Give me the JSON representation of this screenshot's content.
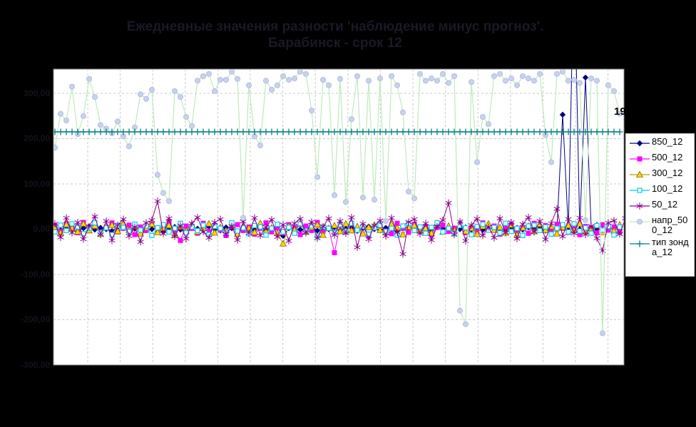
{
  "title": {
    "line1": "Ежедневные значения разности 'наблюдение минус прогноз'.",
    "line2": "Барабинск - срок 12"
  },
  "annotation": {
    "text": "19"
  },
  "colors": {
    "background": "#000000",
    "plot_background": "#FFFFFF",
    "plot_border": "#8C8C8C",
    "grid": "#C9C9C9",
    "title_text": "#191928",
    "axis_text": "#13131F",
    "legend_border": "#D9D9D9",
    "legend_background": "#FFFFFF"
  },
  "chart_data": {
    "type": "line",
    "title": "Ежедневные значения разности 'наблюдение минус прогноз'. Барабинск - срок 12",
    "xlabel": "",
    "ylabel": "",
    "ylim": [
      -300,
      353
    ],
    "grid": "dashed",
    "legend_position": "right",
    "x": {
      "count": 100,
      "labels_visible": false
    },
    "y_ticks": [
      {
        "value": 300,
        "label": "300,00"
      },
      {
        "value": 200,
        "label": "200,00"
      },
      {
        "value": 100,
        "label": "100,00"
      },
      {
        "value": 0,
        "label": "0,00"
      },
      {
        "value": -100,
        "label": "-100,00"
      },
      {
        "value": -200,
        "label": "-200,00"
      },
      {
        "value": -300,
        "label": "-300,00"
      }
    ],
    "series": [
      {
        "name": "850_12",
        "color": "#000080",
        "marker": "diamond",
        "width": 1,
        "values": [
          3,
          -2,
          4,
          1,
          -5,
          2,
          6,
          -1,
          3,
          0,
          -4,
          5,
          2,
          -3,
          1,
          4,
          -2,
          0,
          3,
          -6,
          2,
          5,
          -1,
          -4,
          3,
          1,
          -2,
          6,
          0,
          -3,
          4,
          2,
          -5,
          1,
          3,
          -1,
          5,
          -2,
          0,
          4,
          -15,
          2,
          3,
          -1,
          1,
          5,
          -3,
          2,
          0,
          4,
          -2,
          1,
          3,
          -4,
          2,
          6,
          0,
          -2,
          3,
          1,
          -5,
          2,
          4,
          -1,
          0,
          3,
          -2,
          5,
          1,
          -3,
          2,
          0,
          4,
          -1,
          3,
          -2,
          1,
          5,
          0,
          -4,
          2,
          3,
          -1,
          4,
          0,
          2,
          -3,
          1,
          0,
          253,
          -2,
          600,
          0,
          335,
          2,
          0,
          -1,
          3,
          1,
          -2
        ]
      },
      {
        "name": "500_12",
        "color": "#FF00FF",
        "marker": "square",
        "width": 1,
        "values": [
          8,
          -5,
          12,
          3,
          -8,
          15,
          -2,
          6,
          -10,
          4,
          14,
          -6,
          2,
          9,
          -12,
          5,
          -3,
          11,
          -7,
          3,
          16,
          -4,
          -25,
          7,
          2,
          -9,
          13,
          -5,
          8,
          -2,
          -14,
          6,
          10,
          -3,
          5,
          -11,
          2,
          14,
          -6,
          3,
          -8,
          10,
          4,
          -12,
          7,
          -3,
          15,
          -5,
          2,
          -52,
          9,
          -6,
          12,
          -2,
          5,
          -15,
          3,
          8,
          -4,
          -10,
          13,
          2,
          -7,
          11,
          -3,
          6,
          -13,
          4,
          9,
          -5,
          2,
          12,
          -8,
          3,
          -6,
          14,
          -2,
          7,
          -11,
          5,
          10,
          -4,
          2,
          -9,
          13,
          -3,
          8,
          -5,
          11,
          2,
          -7,
          4,
          -12,
          6,
          3,
          -8,
          10,
          -2,
          5,
          -6
        ]
      },
      {
        "name": "300_12",
        "color": "#B8A100",
        "marker": "triangle",
        "marker_fill": "#FFD700",
        "marker_edge": "#806000",
        "width": 1,
        "values": [
          5,
          -8,
          10,
          2,
          -6,
          12,
          -3,
          7,
          -11,
          4,
          9,
          -5,
          13,
          -2,
          6,
          -10,
          3,
          11,
          -7,
          2,
          8,
          -13,
          5,
          -4,
          10,
          -6,
          2,
          12,
          -8,
          4,
          -3,
          9,
          -11,
          6,
          2,
          -7,
          13,
          -5,
          3,
          -9,
          -32,
          7,
          -2,
          11,
          -6,
          4,
          10,
          -13,
          2,
          8,
          -5,
          12,
          -3,
          6,
          -10,
          4,
          9,
          -2,
          -7,
          11,
          3,
          -12,
          5,
          8,
          -4,
          2,
          -9,
          13,
          -6,
          7,
          -3,
          10,
          -5,
          2,
          -11,
          6,
          12,
          -2,
          4,
          -8,
          9,
          -13,
          3,
          7,
          -5,
          11,
          -2,
          6,
          -10,
          4,
          8,
          -3,
          12,
          -6,
          2,
          9,
          -7,
          5,
          -4,
          10
        ]
      },
      {
        "name": "100_12",
        "color": "#00CCEE",
        "marker": "square_open",
        "width": 1,
        "values": [
          -6,
          9,
          -3,
          12,
          5,
          -10,
          2,
          14,
          -7,
          3,
          -12,
          8,
          4,
          -5,
          11,
          -2,
          7,
          -14,
          3,
          10,
          -6,
          2,
          13,
          -8,
          5,
          -3,
          9,
          -12,
          6,
          2,
          -7,
          14,
          -4,
          3,
          -10,
          8,
          5,
          -13,
          2,
          11,
          -6,
          4,
          -9,
          12,
          -3,
          7,
          -15,
          5,
          2,
          -8,
          10,
          -4,
          13,
          -2,
          6,
          -11,
          3,
          9,
          -5,
          2,
          -13,
          7,
          12,
          -3,
          5,
          -9,
          4,
          14,
          -6,
          2,
          -10,
          8,
          3,
          -12,
          6,
          11,
          -2,
          4,
          -8,
          13,
          -5,
          2,
          -14,
          7,
          9,
          -3,
          5,
          -11,
          2,
          10,
          -6,
          12,
          -4,
          3,
          -9,
          8,
          -2,
          6,
          -13,
          5
        ]
      },
      {
        "name": "50_12",
        "color": "#8B008B",
        "marker": "asterisk",
        "width": 1,
        "values": [
          12,
          -18,
          25,
          -8,
          15,
          -22,
          6,
          28,
          -12,
          18,
          -25,
          9,
          22,
          -15,
          5,
          -28,
          14,
          20,
          62,
          -10,
          24,
          -16,
          8,
          -21,
          13,
          26,
          -6,
          -19,
          15,
          22,
          -11,
          7,
          -24,
          17,
          -9,
          25,
          -14,
          5,
          21,
          -17,
          10,
          -26,
          13,
          23,
          -8,
          16,
          -20,
          6,
          24,
          -13,
          18,
          -9,
          26,
          -40,
          12,
          -22,
          8,
          19,
          -15,
          25,
          -7,
          -55,
          16,
          22,
          -10,
          13,
          -24,
          6,
          20,
          58,
          -12,
          17,
          -26,
          9,
          23,
          -14,
          5,
          -19,
          24,
          -8,
          15,
          -21,
          11,
          26,
          -6,
          18,
          -23,
          13,
          45,
          -16,
          22,
          -9,
          25,
          -12,
          7,
          -20,
          -48,
          14,
          19,
          -11,
          24
        ]
      },
      {
        "name": "напр_500_12",
        "color": "#BFE9BD",
        "marker": "circle",
        "marker_fill": "#C9D2EC",
        "marker_edge": "#A9B6DC",
        "width": 1.2,
        "values": [
          180,
          255,
          240,
          315,
          210,
          250,
          332,
          292,
          230,
          222,
          212,
          238,
          205,
          183,
          225,
          298,
          288,
          308,
          120,
          80,
          62,
          305,
          292,
          248,
          228,
          328,
          338,
          343,
          305,
          330,
          330,
          348,
          332,
          25,
          318,
          205,
          185,
          328,
          308,
          318,
          338,
          330,
          333,
          348,
          343,
          262,
          115,
          330,
          318,
          75,
          332,
          60,
          243,
          338,
          70,
          328,
          65,
          333,
          18,
          338,
          318,
          258,
          83,
          68,
          343,
          328,
          333,
          328,
          343,
          323,
          338,
          -180,
          -210,
          325,
          148,
          248,
          232,
          338,
          343,
          328,
          333,
          318,
          338,
          333,
          328,
          343,
          208,
          148,
          343,
          348,
          328,
          330,
          323,
          20,
          333,
          328,
          -230,
          318,
          305,
          255
        ]
      },
      {
        "name": "тип зонда_12",
        "color": "#007F7F",
        "marker": "plus",
        "width": 1.4,
        "constant": 215,
        "count": 100
      }
    ]
  }
}
